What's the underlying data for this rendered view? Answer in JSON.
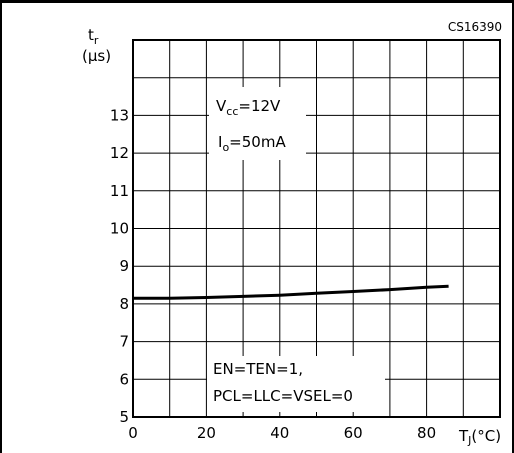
{
  "figure_code": "CS16390",
  "chart_data": {
    "type": "line",
    "ylabel_main": "t",
    "ylabel_sub": "r",
    "ylabel_unit": "(μs)",
    "xlabel_main": "T",
    "xlabel_sub": "J",
    "xlabel_unit": "(°C)",
    "xlim": [
      0,
      100
    ],
    "ylim": [
      5,
      15
    ],
    "grid": true,
    "x_tick_labels": [
      {
        "value": 0,
        "label": "0"
      },
      {
        "value": 20,
        "label": "20"
      },
      {
        "value": 40,
        "label": "40"
      },
      {
        "value": 60,
        "label": "60"
      },
      {
        "value": 80,
        "label": "80"
      }
    ],
    "y_tick_labels": [
      {
        "value": 5,
        "label": "5"
      },
      {
        "value": 6,
        "label": "6"
      },
      {
        "value": 7,
        "label": "7"
      },
      {
        "value": 8,
        "label": "8"
      },
      {
        "value": 9,
        "label": "9"
      },
      {
        "value": 10,
        "label": "10"
      },
      {
        "value": 11,
        "label": "11"
      },
      {
        "value": 12,
        "label": "12"
      },
      {
        "value": 13,
        "label": "13"
      }
    ],
    "series": [
      {
        "x": [
          0,
          10,
          20,
          30,
          40,
          50,
          60,
          70,
          80,
          86
        ],
        "y": [
          8.15,
          8.15,
          8.17,
          8.2,
          8.23,
          8.28,
          8.33,
          8.38,
          8.44,
          8.47
        ]
      }
    ],
    "annotations": {
      "conditions_top": {
        "line1": {
          "main": "V",
          "sub": "cc",
          "rest": "=12V"
        },
        "line2": {
          "main": "I",
          "sub": "o",
          "rest": "=50mA"
        }
      },
      "conditions_bottom": {
        "line1": "EN=TEN=1,",
        "line2": "PCL=LLC=VSEL=0"
      }
    }
  }
}
